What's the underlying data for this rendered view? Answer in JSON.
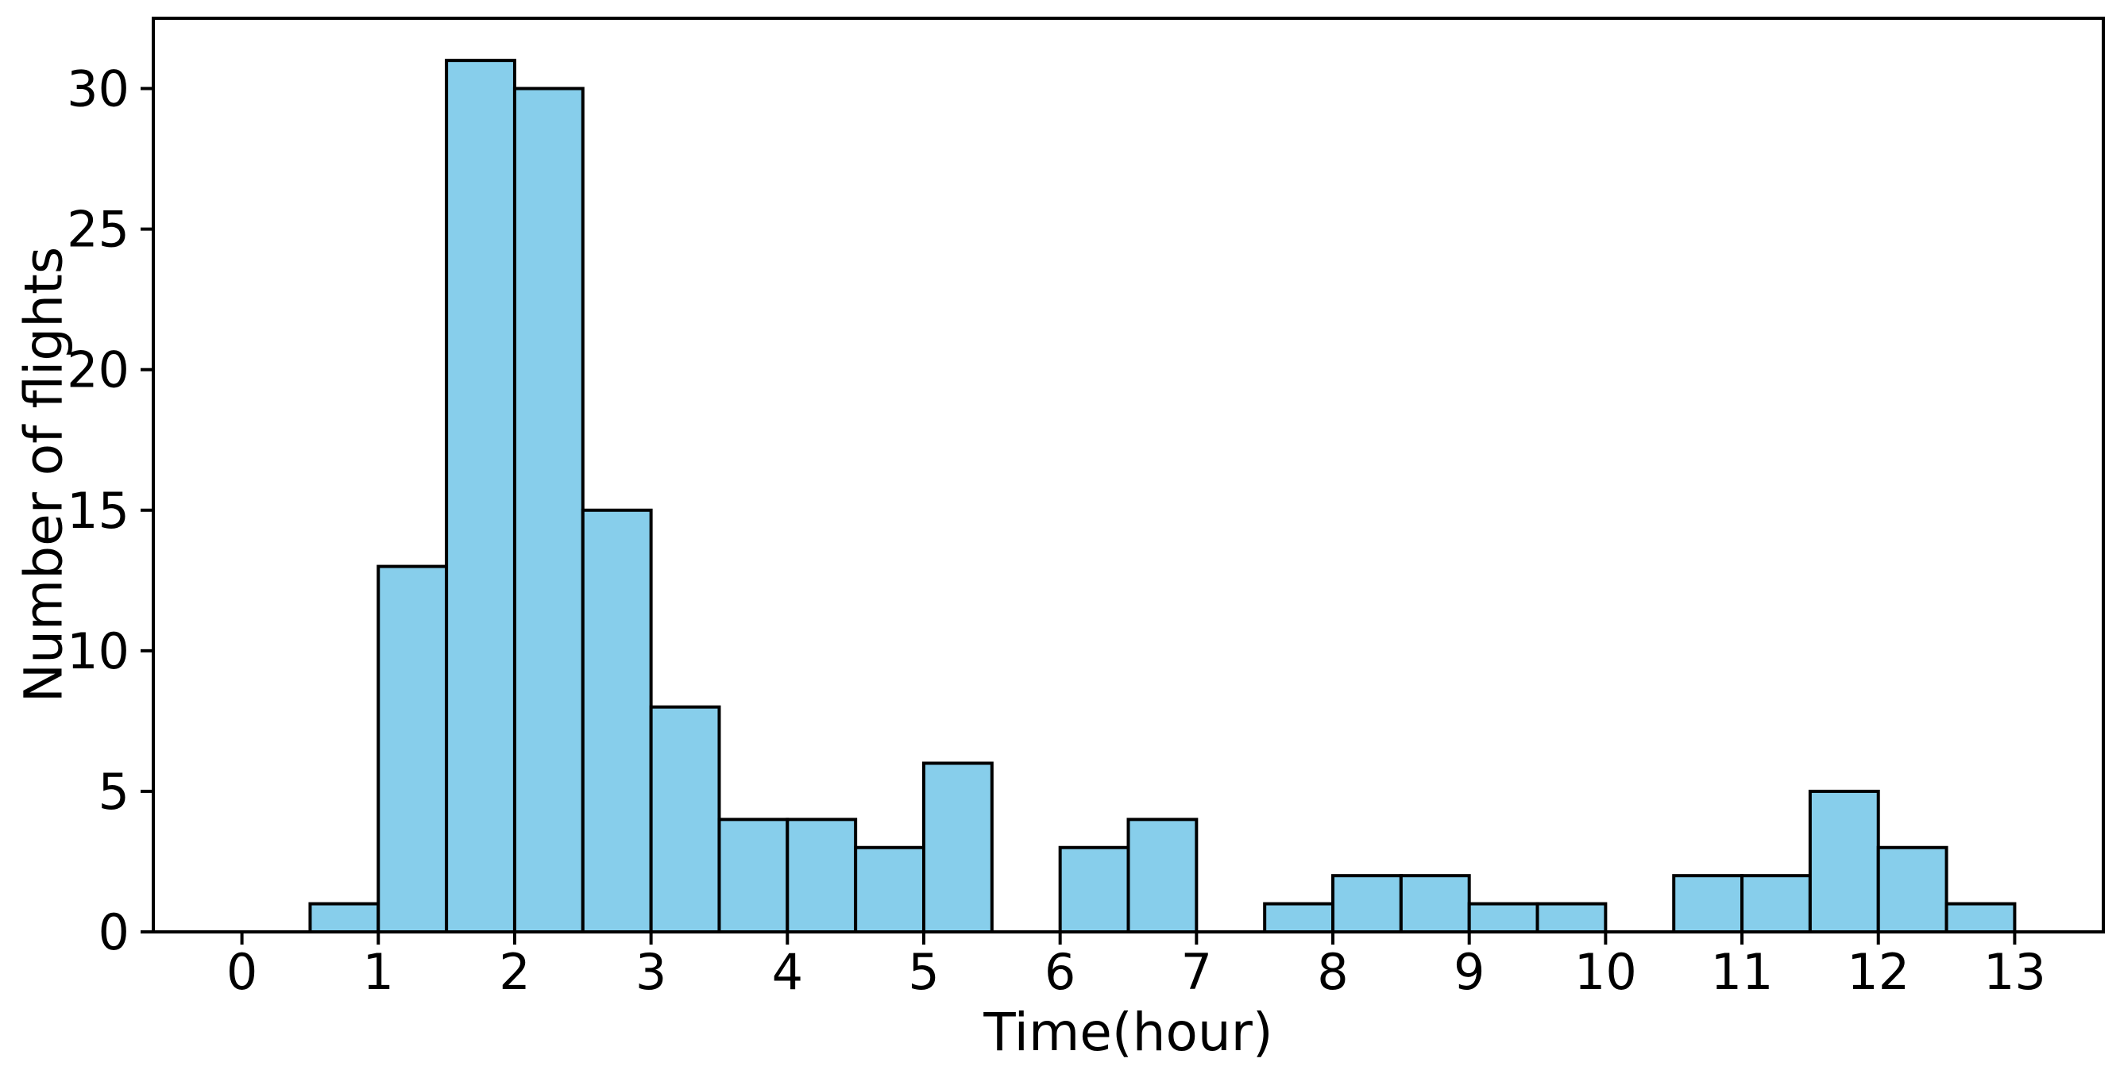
{
  "chart_data": {
    "type": "bar",
    "subtype": "histogram",
    "title": "",
    "xlabel": "Time(hour)",
    "ylabel": "Number of flights",
    "bin_width": 0.5,
    "bin_starts": [
      0,
      0.5,
      1,
      1.5,
      2,
      2.5,
      3,
      3.5,
      4,
      4.5,
      5,
      5.5,
      6,
      6.5,
      7,
      7.5,
      8,
      8.5,
      9,
      9.5,
      10,
      10.5,
      11,
      11.5,
      12,
      12.5
    ],
    "counts": [
      0,
      1,
      13,
      31,
      30,
      15,
      8,
      4,
      4,
      3,
      6,
      0,
      3,
      4,
      0,
      1,
      2,
      2,
      1,
      1,
      0,
      2,
      2,
      5,
      3,
      1
    ],
    "xticks": [
      0,
      1,
      2,
      3,
      4,
      5,
      6,
      7,
      8,
      9,
      10,
      11,
      12,
      13
    ],
    "yticks": [
      0,
      5,
      10,
      15,
      20,
      25,
      30
    ],
    "xlim": [
      -0.65,
      13.65
    ],
    "ylim": [
      0,
      32.5
    ],
    "grid": false,
    "legend": "none",
    "bar_fill": "#87ceeb",
    "bar_edge": "#000000",
    "axis_color": "#000000",
    "background": "#ffffff"
  }
}
